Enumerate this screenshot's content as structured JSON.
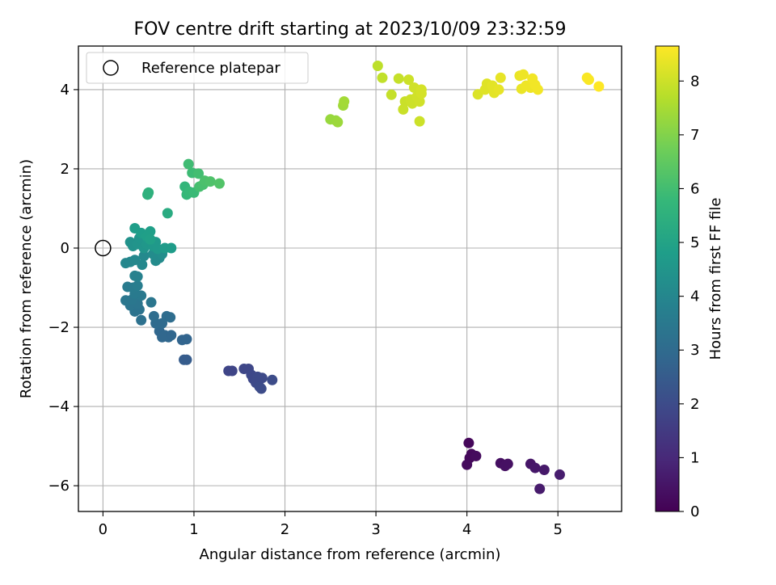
{
  "chart_data": {
    "type": "scatter",
    "title": "FOV centre drift starting at 2023/10/09 23:32:59",
    "xlabel": "Angular distance from reference (arcmin)",
    "ylabel": "Rotation from reference (arcmin)",
    "xlim": [
      -0.27,
      5.7
    ],
    "ylim": [
      -6.65,
      5.1
    ],
    "xticks": [
      0,
      1,
      2,
      3,
      4,
      5
    ],
    "xtick_labels": [
      "0",
      "1",
      "2",
      "3",
      "4",
      "5"
    ],
    "yticks": [
      -6,
      -4,
      -2,
      0,
      2,
      4
    ],
    "ytick_labels": [
      "−6",
      "−4",
      "−2",
      "0",
      "2",
      "4"
    ],
    "grid": true,
    "legend": {
      "placement": "top-left",
      "entries": [
        "Reference platepar"
      ]
    },
    "reference_point": {
      "x": 0,
      "y": 0,
      "marker": "open-circle"
    },
    "colorbar": {
      "label": "Hours from first FF file",
      "colormap": "viridis",
      "range": [
        0,
        8.65
      ],
      "ticks": [
        0,
        1,
        2,
        3,
        4,
        5,
        6,
        7,
        8
      ],
      "tick_labels": [
        "0",
        "1",
        "2",
        "3",
        "4",
        "5",
        "6",
        "7",
        "8"
      ],
      "stops": [
        "#440154",
        "#482878",
        "#3e4989",
        "#31688e",
        "#26828e",
        "#1f9e89",
        "#35b779",
        "#6ece58",
        "#b5de2b",
        "#fde725"
      ]
    },
    "points": [
      {
        "x": 4.02,
        "y": -4.92,
        "c": 0.15
      },
      {
        "x": 4.05,
        "y": -5.2,
        "c": 0.2
      },
      {
        "x": 4.03,
        "y": -5.3,
        "c": 0.2
      },
      {
        "x": 4.1,
        "y": -5.25,
        "c": 0.25
      },
      {
        "x": 4.0,
        "y": -5.47,
        "c": 0.25
      },
      {
        "x": 4.37,
        "y": -5.43,
        "c": 0.35
      },
      {
        "x": 4.42,
        "y": -5.5,
        "c": 0.4
      },
      {
        "x": 4.45,
        "y": -5.45,
        "c": 0.4
      },
      {
        "x": 4.7,
        "y": -5.45,
        "c": 0.5
      },
      {
        "x": 4.75,
        "y": -5.55,
        "c": 0.55
      },
      {
        "x": 4.85,
        "y": -5.6,
        "c": 0.6
      },
      {
        "x": 4.8,
        "y": -6.08,
        "c": 0.65
      },
      {
        "x": 5.02,
        "y": -5.72,
        "c": 0.7
      },
      {
        "x": 1.38,
        "y": -3.1,
        "c": 1.8
      },
      {
        "x": 1.42,
        "y": -3.1,
        "c": 1.8
      },
      {
        "x": 1.55,
        "y": -3.05,
        "c": 1.85
      },
      {
        "x": 1.6,
        "y": -3.05,
        "c": 1.85
      },
      {
        "x": 1.63,
        "y": -3.2,
        "c": 1.9
      },
      {
        "x": 1.65,
        "y": -3.3,
        "c": 1.9
      },
      {
        "x": 1.7,
        "y": -3.25,
        "c": 1.95
      },
      {
        "x": 1.68,
        "y": -3.4,
        "c": 1.95
      },
      {
        "x": 1.72,
        "y": -3.5,
        "c": 2.0
      },
      {
        "x": 1.74,
        "y": -3.55,
        "c": 2.0
      },
      {
        "x": 1.75,
        "y": -3.28,
        "c": 1.95
      },
      {
        "x": 1.86,
        "y": -3.33,
        "c": 2.0
      },
      {
        "x": 0.89,
        "y": -2.82,
        "c": 2.5
      },
      {
        "x": 0.92,
        "y": -2.82,
        "c": 2.5
      },
      {
        "x": 0.87,
        "y": -2.32,
        "c": 2.8
      },
      {
        "x": 0.92,
        "y": -2.3,
        "c": 2.8
      },
      {
        "x": 0.62,
        "y": -2.1,
        "c": 2.9
      },
      {
        "x": 0.68,
        "y": -2.2,
        "c": 2.9
      },
      {
        "x": 0.72,
        "y": -2.25,
        "c": 2.9
      },
      {
        "x": 0.65,
        "y": -2.25,
        "c": 2.9
      },
      {
        "x": 0.75,
        "y": -2.2,
        "c": 2.85
      },
      {
        "x": 0.58,
        "y": -1.9,
        "c": 3.0
      },
      {
        "x": 0.65,
        "y": -1.9,
        "c": 3.0
      },
      {
        "x": 0.56,
        "y": -1.72,
        "c": 3.05
      },
      {
        "x": 0.7,
        "y": -1.72,
        "c": 3.05
      },
      {
        "x": 0.74,
        "y": -1.75,
        "c": 3.05
      },
      {
        "x": 0.42,
        "y": -1.82,
        "c": 3.2
      },
      {
        "x": 0.35,
        "y": -1.6,
        "c": 3.3
      },
      {
        "x": 0.4,
        "y": -1.55,
        "c": 3.3
      },
      {
        "x": 0.3,
        "y": -1.45,
        "c": 3.35
      },
      {
        "x": 0.38,
        "y": -1.4,
        "c": 3.35
      },
      {
        "x": 0.53,
        "y": -1.37,
        "c": 3.4
      },
      {
        "x": 0.25,
        "y": -1.32,
        "c": 3.45
      },
      {
        "x": 0.32,
        "y": -1.3,
        "c": 3.45
      },
      {
        "x": 0.42,
        "y": -1.2,
        "c": 3.5
      },
      {
        "x": 0.35,
        "y": -1.15,
        "c": 3.55
      },
      {
        "x": 0.27,
        "y": -0.98,
        "c": 3.6
      },
      {
        "x": 0.33,
        "y": -1.0,
        "c": 3.6
      },
      {
        "x": 0.38,
        "y": -0.95,
        "c": 3.65
      },
      {
        "x": 0.35,
        "y": -0.7,
        "c": 3.8
      },
      {
        "x": 0.38,
        "y": -0.72,
        "c": 3.8
      },
      {
        "x": 0.25,
        "y": -0.38,
        "c": 4.0
      },
      {
        "x": 0.3,
        "y": -0.35,
        "c": 4.0
      },
      {
        "x": 0.35,
        "y": -0.3,
        "c": 4.05
      },
      {
        "x": 0.43,
        "y": -0.42,
        "c": 4.05
      },
      {
        "x": 0.45,
        "y": -0.2,
        "c": 4.1
      },
      {
        "x": 0.58,
        "y": -0.32,
        "c": 4.15
      },
      {
        "x": 0.62,
        "y": -0.25,
        "c": 4.15
      },
      {
        "x": 0.55,
        "y": -0.15,
        "c": 4.2
      },
      {
        "x": 0.65,
        "y": -0.15,
        "c": 4.25
      },
      {
        "x": 0.3,
        "y": 0.15,
        "c": 4.4
      },
      {
        "x": 0.33,
        "y": 0.05,
        "c": 4.4
      },
      {
        "x": 0.38,
        "y": 0.1,
        "c": 4.45
      },
      {
        "x": 0.4,
        "y": 0.25,
        "c": 4.5
      },
      {
        "x": 0.45,
        "y": 0.0,
        "c": 4.5
      },
      {
        "x": 0.48,
        "y": 0.1,
        "c": 4.55
      },
      {
        "x": 0.5,
        "y": 0.2,
        "c": 4.6
      },
      {
        "x": 0.55,
        "y": 0.05,
        "c": 4.6
      },
      {
        "x": 0.58,
        "y": 0.15,
        "c": 4.65
      },
      {
        "x": 0.6,
        "y": -0.02,
        "c": 4.65
      },
      {
        "x": 0.68,
        "y": 0.0,
        "c": 4.7
      },
      {
        "x": 0.75,
        "y": 0.0,
        "c": 4.75
      },
      {
        "x": 0.35,
        "y": 0.5,
        "c": 4.8
      },
      {
        "x": 0.42,
        "y": 0.38,
        "c": 4.8
      },
      {
        "x": 0.48,
        "y": 0.3,
        "c": 4.85
      },
      {
        "x": 0.52,
        "y": 0.42,
        "c": 4.85
      },
      {
        "x": 0.52,
        "y": 0.22,
        "c": 4.9
      },
      {
        "x": 0.49,
        "y": 1.35,
        "c": 5.5
      },
      {
        "x": 0.5,
        "y": 1.4,
        "c": 5.5
      },
      {
        "x": 0.71,
        "y": 0.88,
        "c": 5.3
      },
      {
        "x": 0.9,
        "y": 1.55,
        "c": 5.7
      },
      {
        "x": 0.92,
        "y": 1.35,
        "c": 5.75
      },
      {
        "x": 0.95,
        "y": 1.42,
        "c": 5.8
      },
      {
        "x": 1.0,
        "y": 1.4,
        "c": 5.85
      },
      {
        "x": 0.98,
        "y": 1.9,
        "c": 5.9
      },
      {
        "x": 0.94,
        "y": 2.12,
        "c": 5.95
      },
      {
        "x": 1.05,
        "y": 1.88,
        "c": 6.0
      },
      {
        "x": 1.06,
        "y": 1.55,
        "c": 6.05
      },
      {
        "x": 1.1,
        "y": 1.6,
        "c": 6.1
      },
      {
        "x": 1.12,
        "y": 1.7,
        "c": 6.15
      },
      {
        "x": 1.18,
        "y": 1.68,
        "c": 6.2
      },
      {
        "x": 1.28,
        "y": 1.63,
        "c": 6.25
      },
      {
        "x": 2.5,
        "y": 3.25,
        "c": 7.3
      },
      {
        "x": 2.56,
        "y": 3.22,
        "c": 7.3
      },
      {
        "x": 2.58,
        "y": 3.18,
        "c": 7.35
      },
      {
        "x": 2.64,
        "y": 3.6,
        "c": 7.4
      },
      {
        "x": 2.65,
        "y": 3.7,
        "c": 7.45
      },
      {
        "x": 3.02,
        "y": 4.6,
        "c": 7.8
      },
      {
        "x": 3.07,
        "y": 4.3,
        "c": 7.85
      },
      {
        "x": 3.17,
        "y": 3.87,
        "c": 7.9
      },
      {
        "x": 3.25,
        "y": 4.28,
        "c": 7.9
      },
      {
        "x": 3.3,
        "y": 3.5,
        "c": 7.95
      },
      {
        "x": 3.32,
        "y": 3.7,
        "c": 7.95
      },
      {
        "x": 3.36,
        "y": 4.25,
        "c": 8.0
      },
      {
        "x": 3.38,
        "y": 3.75,
        "c": 8.0
      },
      {
        "x": 3.4,
        "y": 3.65,
        "c": 8.0
      },
      {
        "x": 3.42,
        "y": 4.05,
        "c": 8.05
      },
      {
        "x": 3.45,
        "y": 3.82,
        "c": 8.05
      },
      {
        "x": 3.48,
        "y": 3.7,
        "c": 8.05
      },
      {
        "x": 3.5,
        "y": 4.0,
        "c": 8.1
      },
      {
        "x": 3.5,
        "y": 3.9,
        "c": 8.1
      },
      {
        "x": 3.48,
        "y": 3.2,
        "c": 8.0
      },
      {
        "x": 4.12,
        "y": 3.88,
        "c": 8.2
      },
      {
        "x": 4.2,
        "y": 4.0,
        "c": 8.25
      },
      {
        "x": 4.22,
        "y": 4.15,
        "c": 8.25
      },
      {
        "x": 4.28,
        "y": 4.1,
        "c": 8.3
      },
      {
        "x": 4.3,
        "y": 3.92,
        "c": 8.3
      },
      {
        "x": 4.35,
        "y": 4.0,
        "c": 8.35
      },
      {
        "x": 4.37,
        "y": 4.3,
        "c": 8.35
      },
      {
        "x": 4.58,
        "y": 4.35,
        "c": 8.4
      },
      {
        "x": 4.6,
        "y": 4.02,
        "c": 8.4
      },
      {
        "x": 4.62,
        "y": 4.38,
        "c": 8.45
      },
      {
        "x": 4.65,
        "y": 4.1,
        "c": 8.45
      },
      {
        "x": 4.7,
        "y": 4.05,
        "c": 8.45
      },
      {
        "x": 4.72,
        "y": 4.28,
        "c": 8.5
      },
      {
        "x": 4.75,
        "y": 4.12,
        "c": 8.5
      },
      {
        "x": 4.78,
        "y": 4.0,
        "c": 8.5
      },
      {
        "x": 5.32,
        "y": 4.3,
        "c": 8.6
      },
      {
        "x": 5.34,
        "y": 4.25,
        "c": 8.6
      },
      {
        "x": 5.45,
        "y": 4.08,
        "c": 8.65
      }
    ]
  }
}
